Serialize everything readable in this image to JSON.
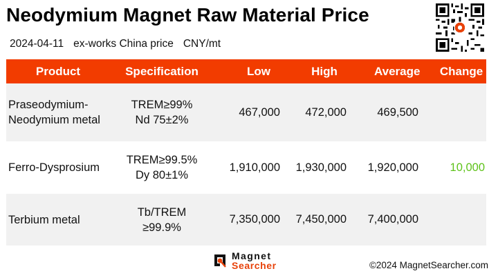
{
  "header": {
    "title": "Neodymium Magnet Raw Material Price",
    "date": "2024-04-11",
    "price_basis": "ex-works China price",
    "unit": "CNY/mt"
  },
  "table": {
    "columns": [
      "Product",
      "Specification",
      "Low",
      "High",
      "Average",
      "Change"
    ],
    "rows": [
      {
        "product": [
          "Praseodymium-",
          "Neodymium metal"
        ],
        "spec": [
          "TREM≥99%",
          "Nd 75±2%"
        ],
        "low": "467,000",
        "high": "472,000",
        "average": "469,500",
        "change": ""
      },
      {
        "product": [
          "Ferro-Dysprosium"
        ],
        "spec": [
          "TREM≥99.5%",
          "Dy 80±1%"
        ],
        "low": "1,910,000",
        "high": "1,930,000",
        "average": "1,920,000",
        "change": "10,000"
      },
      {
        "product": [
          "Terbium metal"
        ],
        "spec": [
          "Tb/TREM",
          "≥99.9%"
        ],
        "low": "7,350,000",
        "high": "7,450,000",
        "average": "7,400,000",
        "change": ""
      }
    ]
  },
  "footer": {
    "logo_line1": "Magnet",
    "logo_line2": "Searcher",
    "copyright": "©2024 MagnetSearcher.com"
  },
  "colors": {
    "header_bg": "#f23c00",
    "row_alt_bg": "#f1f1f1",
    "change_up": "#5ec21a",
    "brand": "#e8420a"
  }
}
